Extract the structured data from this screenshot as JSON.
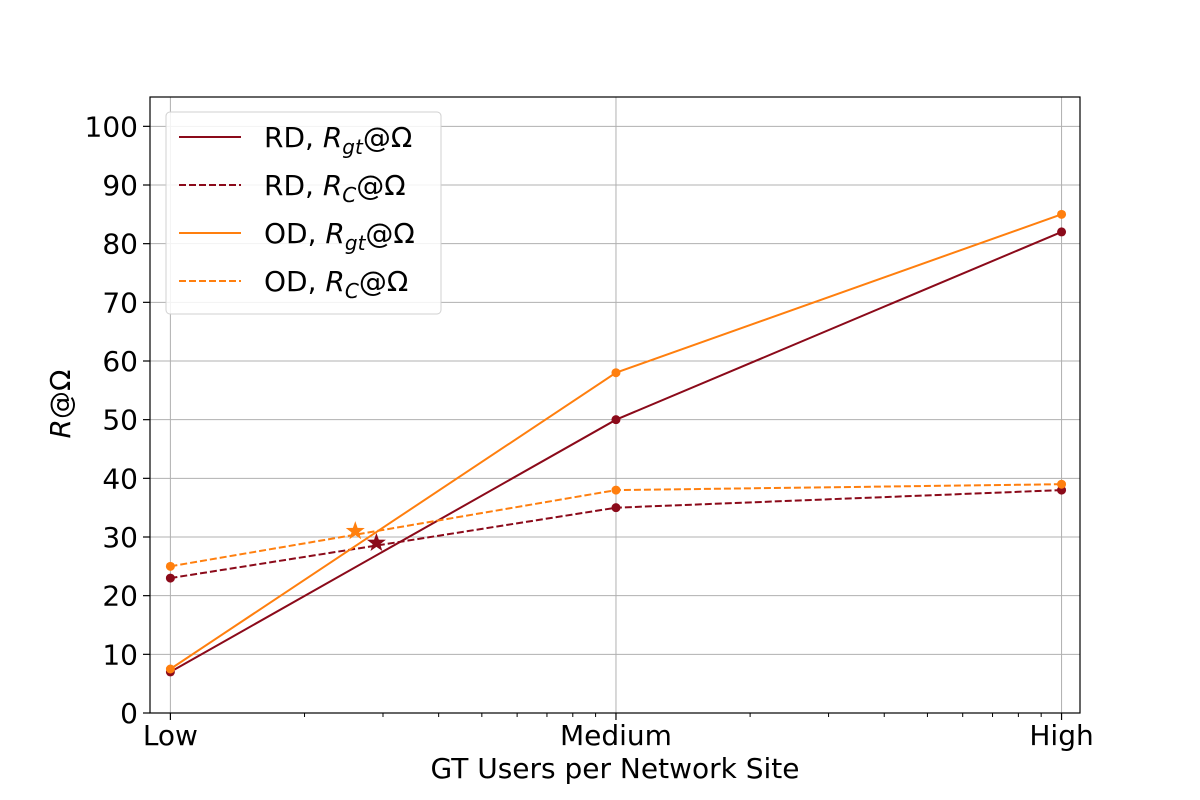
{
  "chart_data": {
    "type": "line",
    "xlabel": "GT Users per Network Site",
    "ylabel": {
      "italic": "R",
      "rest": "@Ω"
    },
    "categories": [
      "Low",
      "Medium",
      "High"
    ],
    "x_scale": "log",
    "xlim": [
      0.9,
      110
    ],
    "x_ticks": [
      {
        "x": 1,
        "label": "Low"
      },
      {
        "x": 10,
        "label": "Medium"
      },
      {
        "x": 100,
        "label": "High"
      }
    ],
    "ylim": [
      0,
      105
    ],
    "y_ticks": [
      "0",
      "10",
      "20",
      "30",
      "40",
      "50",
      "60",
      "70",
      "80",
      "90",
      "100"
    ],
    "grid": true,
    "legend_position": "top-left",
    "series": [
      {
        "name": "RD, R_gt@Ω",
        "legend": {
          "prefix": "RD, ",
          "var": "R",
          "sub": "gt",
          "suffix": "@Ω"
        },
        "color": "#8b0a1a",
        "linestyle": "solid",
        "x": [
          1,
          10,
          100
        ],
        "values": [
          7,
          50,
          82
        ]
      },
      {
        "name": "RD, R_C@Ω",
        "legend": {
          "prefix": "RD, ",
          "var": "R",
          "sub": "C",
          "suffix": "@Ω"
        },
        "color": "#8b0a1a",
        "linestyle": "dashed",
        "x": [
          1,
          10,
          100
        ],
        "values": [
          23,
          35,
          38
        ]
      },
      {
        "name": "OD, R_gt@Ω",
        "legend": {
          "prefix": "OD, ",
          "var": "R",
          "sub": "gt",
          "suffix": "@Ω"
        },
        "color": "#ff7f0e",
        "linestyle": "solid",
        "x": [
          1,
          10,
          100
        ],
        "values": [
          7.5,
          58,
          85
        ]
      },
      {
        "name": "OD, R_C@Ω",
        "legend": {
          "prefix": "OD, ",
          "var": "R",
          "sub": "C",
          "suffix": "@Ω"
        },
        "color": "#ff7f0e",
        "linestyle": "dashed",
        "x": [
          1,
          10,
          100
        ],
        "values": [
          25,
          38,
          39
        ]
      }
    ],
    "intersections": [
      {
        "x": 2.9,
        "y": 29,
        "color": "#8b0a1a"
      },
      {
        "x": 2.6,
        "y": 31,
        "color": "#ff7f0e"
      }
    ]
  }
}
